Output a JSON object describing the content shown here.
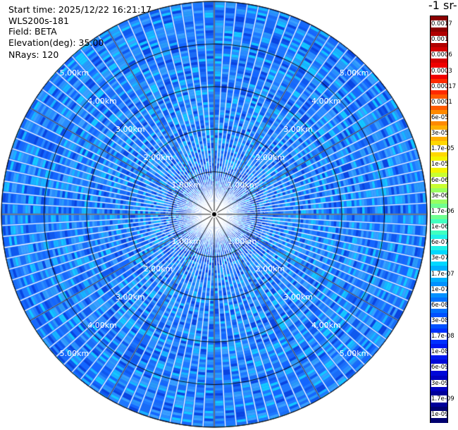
{
  "header": {
    "start_time": "Start time: 2025/12/22 16:21:17",
    "device": "WLS200s-181",
    "field": "Field: BETA",
    "elevation": "Elevation(deg): 35.00",
    "nrays": "NRays: 120"
  },
  "chart_data": {
    "type": "heatmap",
    "projection": "polar-ppi",
    "nrays": 120,
    "range_max_km": 5.0,
    "range_rings_km": [
      1,
      2,
      3,
      4,
      5
    ],
    "range_ring_labels": [
      "1.00km",
      "2.00km",
      "3.00km",
      "4.00km",
      "5.00km"
    ],
    "grid": true,
    "colorbar": {
      "title": "-1 sr-",
      "placement": "right",
      "labels": [
        "0.0017",
        "0.001",
        "0.0006",
        "0.0003",
        "0.00017",
        "0.0001",
        "6e-05",
        "3e-05",
        "1.7e-05",
        "1e-05",
        "6e-06",
        "3e-06",
        "1.7e-06",
        "1e-06",
        "6e-07",
        "3e-07",
        "1.7e-07",
        "1e-07",
        "6e-08",
        "3e-08",
        "1.7e-08",
        "1e-08",
        "6e-09",
        "3e-09",
        "1.7e-09",
        "1e-09"
      ],
      "colors": [
        "#8b0000",
        "#b00000",
        "#d40000",
        "#f00000",
        "#ff2a00",
        "#ff5a00",
        "#ff8a00",
        "#ffb000",
        "#ffd800",
        "#f4f400",
        "#c8ff30",
        "#98ff60",
        "#70ff90",
        "#40ffc0",
        "#20f0e8",
        "#00d8ff",
        "#00b0ff",
        "#0090ff",
        "#0070ff",
        "#0050ff",
        "#0030ff",
        "#0018f0",
        "#0008d8",
        "#0000c0",
        "#00009a",
        "#000070"
      ]
    },
    "dominant_value_range": [
      "1e-08",
      "1.7e-07"
    ]
  }
}
